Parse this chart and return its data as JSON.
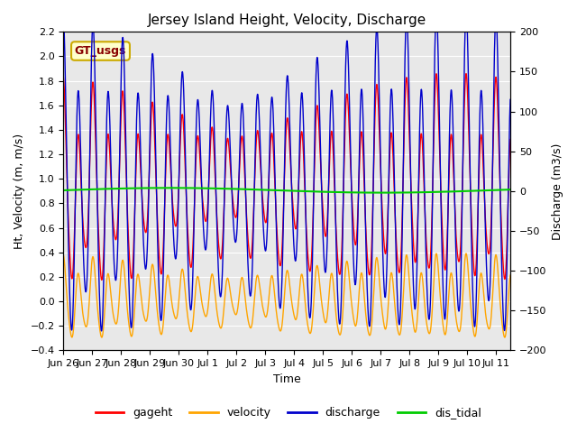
{
  "title": "Jersey Island Height, Velocity, Discharge",
  "xlabel": "Time",
  "ylabel_left": "Ht, Velocity (m, m/s)",
  "ylabel_right": "Discharge (m3/s)",
  "legend_label": "GT_usgs",
  "legend_bg": "#ffffcc",
  "legend_edge": "#ccaa00",
  "legend_text_color": "#880000",
  "ylim_left": [
    -0.4,
    2.2
  ],
  "ylim_right": [
    -200,
    200
  ],
  "background_color": "#ffffff",
  "plot_bg_light": "#e8e8e8",
  "line_colors": {
    "gageht": "#ff0000",
    "velocity": "#ffa500",
    "discharge": "#0000cc",
    "dis_tidal": "#00cc00"
  },
  "line_widths": {
    "gageht": 1.0,
    "velocity": 1.0,
    "discharge": 1.0,
    "dis_tidal": 1.5
  },
  "xtick_labels": [
    "Jun 26",
    "Jun 27",
    "Jun 28",
    "Jun 29",
    "Jun 30",
    "Jul 1",
    "Jul 2",
    "Jul 3",
    "Jul 4",
    "Jul 5",
    "Jul 6",
    "Jul 7",
    "Jul 8",
    "Jul 9",
    "Jul 10",
    "Jul 11"
  ],
  "series_labels": [
    "gageht",
    "velocity",
    "discharge",
    "dis_tidal"
  ],
  "tidal_period_hours": 12.42,
  "spring_neap_period_days": 14.77,
  "num_days": 15.5
}
